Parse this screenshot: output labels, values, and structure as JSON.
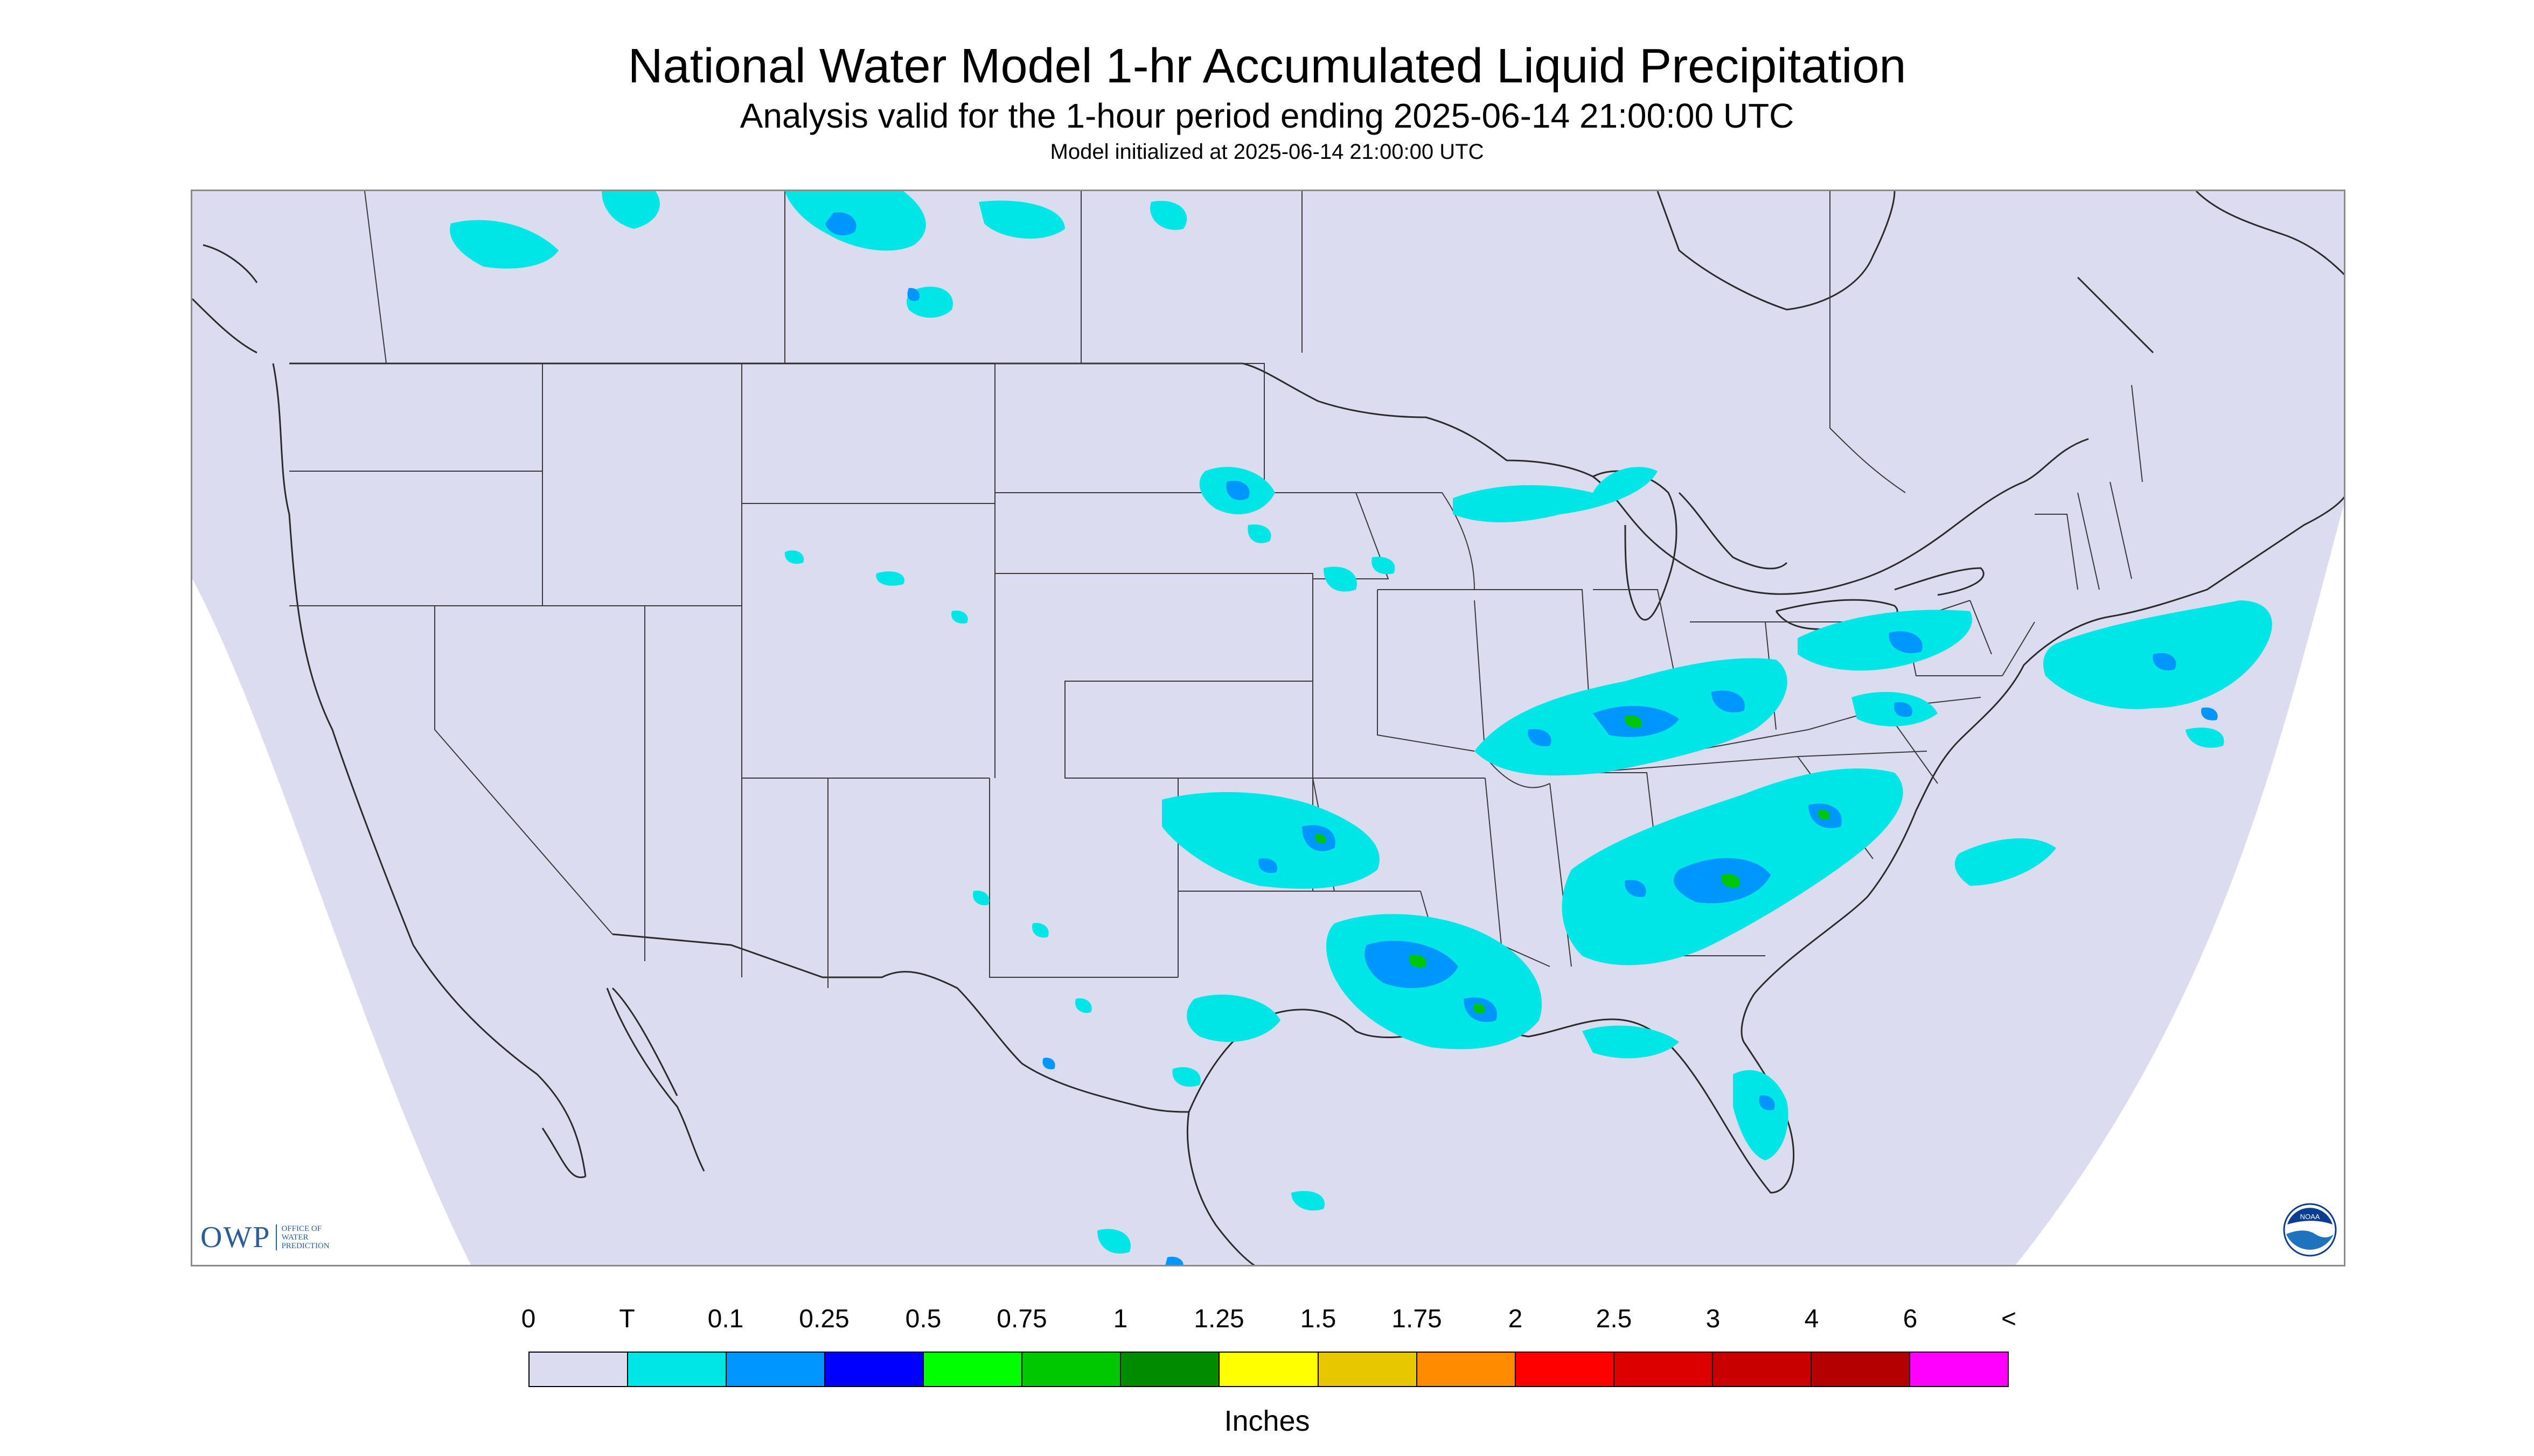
{
  "title": "National Water Model 1-hr Accumulated Liquid Precipitation",
  "subtitle": "Analysis valid for the 1-hour period ending 2025-06-14 21:00:00 UTC",
  "init_line": "Model initialized at 2025-06-14 21:00:00 UTC",
  "map": {
    "projection_outside_color": "#ffffff",
    "domain_fill_color": "#dcdcf0",
    "boundary_color": "#2b2b2b",
    "precip_features": [
      "Southern Canada (Alberta/Saskatchewan)",
      "Northern Minnesota",
      "Upper Michigan",
      "Ohio Valley",
      "Mid-Atlantic",
      "Oklahoma",
      "Louisiana / Mississippi Gulf Coast",
      "Georgia / Carolinas",
      "Florida Peninsula",
      "Northeast offshore"
    ]
  },
  "logos": {
    "owp": {
      "letters": "OWP",
      "text_lines": [
        "OFFICE OF",
        "WATER",
        "PREDICTION"
      ],
      "color": "#2b5d9a"
    },
    "noaa": {
      "text": "NOAA",
      "icon": "noaa-emblem-icon"
    }
  },
  "legend": {
    "units": "Inches",
    "tick_labels": [
      "0",
      "T",
      "0.1",
      "0.25",
      "0.5",
      "0.75",
      "1",
      "1.25",
      "1.5",
      "1.75",
      "2",
      "2.5",
      "3",
      "4",
      "6",
      "<"
    ],
    "colors": [
      "#dcdcf0",
      "#00e6e6",
      "#0096ff",
      "#0000ff",
      "#00ff00",
      "#00c800",
      "#008c00",
      "#ffff00",
      "#e6c800",
      "#ff8c00",
      "#ff0000",
      "#dc0000",
      "#c80000",
      "#b40000",
      "#ff00ff",
      "#9650c8"
    ]
  }
}
